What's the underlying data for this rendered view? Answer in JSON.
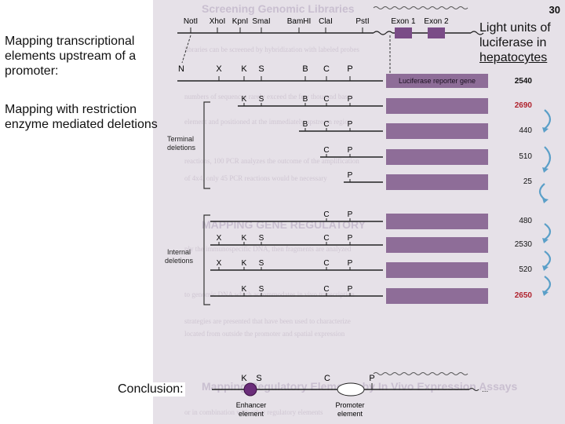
{
  "slide_number": "30",
  "title_lines": [
    "Mapping transcriptional",
    "elements upstream of a",
    "promoter:"
  ],
  "subtitle_lines": [
    "Mapping with restriction",
    "enzyme mediated deletions"
  ],
  "luciferase_label": {
    "line1": "Light units of",
    "line2": "luciferase in",
    "line3": "hepatocytes"
  },
  "conclusion": "Conclusion:",
  "restriction_top_labels": [
    "NotI",
    "XhoI",
    "KpnI",
    "SmaI",
    "BamHI",
    "ClaI",
    "PstI"
  ],
  "exon_labels": [
    "Exon 1",
    "Exon 2"
  ],
  "map_letters": [
    "N",
    "X",
    "K",
    "S",
    "B",
    "C",
    "P"
  ],
  "reporter_label": "Luciferase reporter gene",
  "terminal_label_lines": [
    "Terminal",
    "deletions"
  ],
  "internal_label_lines": [
    "Internal",
    "deletions"
  ],
  "constructs": [
    {
      "letters": [
        "K",
        "S",
        "B",
        "C",
        "P"
      ],
      "value": "2690",
      "style": "red"
    },
    {
      "letters": [
        "B",
        "C",
        "P"
      ],
      "value": "440",
      "style": "normal"
    },
    {
      "letters": [
        "C",
        "P"
      ],
      "value": "510",
      "style": "normal"
    },
    {
      "letters": [
        "P"
      ],
      "value": "25",
      "style": "normal"
    },
    {
      "letters": [
        "C",
        "P"
      ],
      "value": "480",
      "style": "normal"
    },
    {
      "letters": [
        "X",
        "K",
        "S",
        "C",
        "P"
      ],
      "value": "2530",
      "style": "normal"
    },
    {
      "letters": [
        "X",
        "K",
        "S",
        "C",
        "P"
      ],
      "value": "520",
      "style": "normal"
    },
    {
      "letters": [
        "K",
        "S",
        "C",
        "P"
      ],
      "value": "2650",
      "style": "red"
    }
  ],
  "top_value": "2540",
  "bottom_map": {
    "letters": [
      "K",
      "S",
      "C",
      "P"
    ],
    "enhancer_label_lines": [
      "Enhancer",
      "element"
    ],
    "promoter_label_lines": [
      "Promoter",
      "element"
    ]
  },
  "colors": {
    "box_fill": "#8e6d98",
    "exon_fill": "#7a4c87",
    "enhancer_fill": "#6b2d7a",
    "arrow_color": "#5a9fc8",
    "highlight_red": "#b0232e"
  }
}
